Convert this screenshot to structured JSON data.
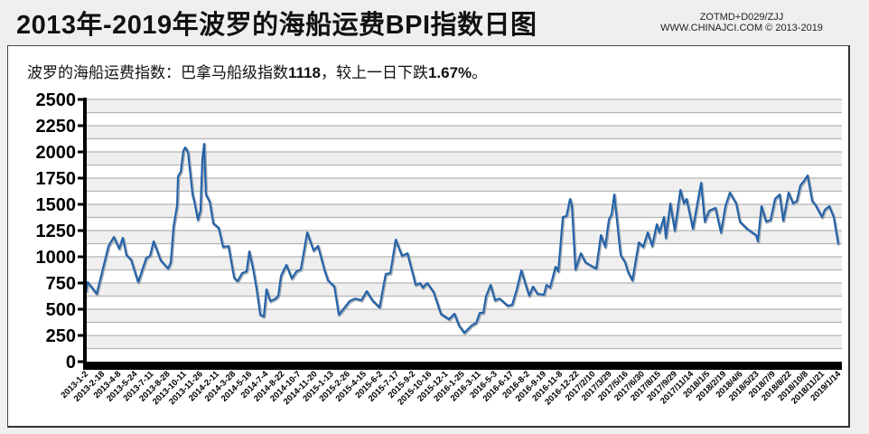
{
  "header": {
    "title": "2013年-2019年波罗的海船运费BPI指数日图",
    "credit_line1": "ZOTMD+D029/ZJJ",
    "credit_line2": "WWW.CHINAJCI.COM © 2013-2019"
  },
  "subtitle": {
    "prefix": "波罗的海船运费指数：巴拿马船级指数",
    "index_value": "1118",
    "middle": "，较上一日下跌",
    "change": "1.67%",
    "suffix": "。"
  },
  "colors": {
    "line": "#2060a8",
    "band": "#efefef",
    "grid": "#b4b4b4"
  },
  "chart_data": {
    "type": "line",
    "title": "波罗的海船运费BPI指数日图",
    "xlabel": "",
    "ylabel": "",
    "ylim": [
      0,
      2500
    ],
    "yticks": [
      0,
      250,
      500,
      750,
      1000,
      1250,
      1500,
      1750,
      2000,
      2250,
      2500
    ],
    "grid": true,
    "legend": "none",
    "categories": [
      "2013-1-2",
      "2013-2-18",
      "2013-4-8",
      "2013-5-24",
      "2013-7-11",
      "2013-8-28",
      "2013-10-11",
      "2013-11-26",
      "2014-2-11",
      "2014-3-28",
      "2014-5-16",
      "2014-7-4",
      "2014-8-22",
      "2014-10-7",
      "2014-11-20",
      "2015-1-13",
      "2015-2-26",
      "2015-4-15",
      "2015-6-2",
      "2015-7-17",
      "2015-9-2",
      "2015-10-16",
      "2015-12-1",
      "2016-1-25",
      "2016-3-11",
      "2016-5-3",
      "2016-6-17",
      "2016-8-2",
      "2016-9-19",
      "2016-11-8",
      "2016-12-22",
      "2017/2/10",
      "2017/3/29",
      "2017/5/16",
      "2017/6/30",
      "2017/8/15",
      "2017/9/29",
      "2017/11/14",
      "2018/1/5",
      "2018/2/19",
      "2018/4/6",
      "2018/5/23",
      "2018/7/9",
      "2018/8/22",
      "2018/10/8",
      "2018/11/21",
      "2019/1/14"
    ],
    "series": [
      {
        "name": "BPI",
        "x_note": "x is fractional category index",
        "points": [
          [
            0,
            664
          ],
          [
            0.11,
            759
          ],
          [
            0.66,
            647
          ],
          [
            1.1,
            922
          ],
          [
            1.38,
            1103
          ],
          [
            1.71,
            1190
          ],
          [
            2.04,
            1078
          ],
          [
            2.26,
            1181
          ],
          [
            2.48,
            1017
          ],
          [
            2.76,
            974
          ],
          [
            3.2,
            759
          ],
          [
            3.7,
            991
          ],
          [
            3.92,
            1009
          ],
          [
            4.14,
            1147
          ],
          [
            4.58,
            966
          ],
          [
            5.03,
            888
          ],
          [
            5.19,
            948
          ],
          [
            5.36,
            1293
          ],
          [
            5.58,
            1491
          ],
          [
            5.63,
            1767
          ],
          [
            5.8,
            1810
          ],
          [
            5.96,
            2009
          ],
          [
            6.07,
            2043
          ],
          [
            6.24,
            2000
          ],
          [
            6.52,
            1595
          ],
          [
            6.63,
            1526
          ],
          [
            6.85,
            1353
          ],
          [
            7.01,
            1440
          ],
          [
            7.12,
            1922
          ],
          [
            7.23,
            2078
          ],
          [
            7.34,
            1595
          ],
          [
            7.57,
            1526
          ],
          [
            7.79,
            1319
          ],
          [
            8.12,
            1276
          ],
          [
            8.39,
            1095
          ],
          [
            8.72,
            1103
          ],
          [
            9.06,
            802
          ],
          [
            9.28,
            767
          ],
          [
            9.55,
            845
          ],
          [
            9.83,
            862
          ],
          [
            9.99,
            1052
          ],
          [
            10.22,
            888
          ],
          [
            10.44,
            690
          ],
          [
            10.66,
            448
          ],
          [
            10.88,
            431
          ],
          [
            11.04,
            690
          ],
          [
            11.27,
            578
          ],
          [
            11.6,
            603
          ],
          [
            11.76,
            629
          ],
          [
            11.93,
            819
          ],
          [
            12.26,
            922
          ],
          [
            12.59,
            793
          ],
          [
            12.87,
            862
          ],
          [
            13.14,
            879
          ],
          [
            13.53,
            1233
          ],
          [
            13.92,
            1060
          ],
          [
            14.19,
            1103
          ],
          [
            14.58,
            879
          ],
          [
            14.8,
            776
          ],
          [
            15.19,
            716
          ],
          [
            15.46,
            448
          ],
          [
            15.74,
            500
          ],
          [
            16.12,
            578
          ],
          [
            16.46,
            603
          ],
          [
            16.84,
            586
          ],
          [
            17.17,
            672
          ],
          [
            17.51,
            586
          ],
          [
            17.95,
            517
          ],
          [
            18.33,
            836
          ],
          [
            18.61,
            845
          ],
          [
            18.94,
            1164
          ],
          [
            19.33,
            1009
          ],
          [
            19.66,
            1034
          ],
          [
            20.16,
            733
          ],
          [
            20.43,
            750
          ],
          [
            20.6,
            707
          ],
          [
            20.87,
            750
          ],
          [
            21.26,
            664
          ],
          [
            21.7,
            457
          ],
          [
            22.2,
            405
          ],
          [
            22.53,
            457
          ],
          [
            22.81,
            345
          ],
          [
            23.14,
            276
          ],
          [
            23.58,
            345
          ],
          [
            23.86,
            371
          ],
          [
            24.08,
            466
          ],
          [
            24.3,
            466
          ],
          [
            24.46,
            621
          ],
          [
            24.74,
            733
          ],
          [
            25.01,
            586
          ],
          [
            25.29,
            603
          ],
          [
            25.79,
            534
          ],
          [
            26.06,
            543
          ],
          [
            26.34,
            690
          ],
          [
            26.62,
            871
          ],
          [
            26.89,
            733
          ],
          [
            27.11,
            629
          ],
          [
            27.33,
            716
          ],
          [
            27.61,
            647
          ],
          [
            28.0,
            638
          ],
          [
            28.16,
            733
          ],
          [
            28.38,
            707
          ],
          [
            28.71,
            905
          ],
          [
            28.88,
            862
          ],
          [
            29.16,
            1379
          ],
          [
            29.38,
            1388
          ],
          [
            29.6,
            1552
          ],
          [
            29.71,
            1491
          ],
          [
            29.93,
            879
          ],
          [
            30.26,
            1034
          ],
          [
            30.54,
            948
          ],
          [
            30.81,
            922
          ],
          [
            31.2,
            888
          ],
          [
            31.48,
            1207
          ],
          [
            31.75,
            1095
          ],
          [
            31.97,
            1353
          ],
          [
            32.14,
            1405
          ],
          [
            32.3,
            1595
          ],
          [
            32.69,
            1017
          ],
          [
            32.97,
            948
          ],
          [
            33.13,
            862
          ],
          [
            33.41,
            776
          ],
          [
            33.8,
            1138
          ],
          [
            34.07,
            1095
          ],
          [
            34.35,
            1233
          ],
          [
            34.62,
            1103
          ],
          [
            34.9,
            1310
          ],
          [
            35.06,
            1233
          ],
          [
            35.34,
            1379
          ],
          [
            35.45,
            1181
          ],
          [
            35.73,
            1509
          ],
          [
            36.0,
            1250
          ],
          [
            36.34,
            1638
          ],
          [
            36.56,
            1509
          ],
          [
            36.72,
            1552
          ],
          [
            37.11,
            1267
          ],
          [
            37.38,
            1509
          ],
          [
            37.61,
            1707
          ],
          [
            37.83,
            1336
          ],
          [
            38.1,
            1440
          ],
          [
            38.49,
            1466
          ],
          [
            38.82,
            1233
          ],
          [
            39.1,
            1483
          ],
          [
            39.37,
            1612
          ],
          [
            39.76,
            1509
          ],
          [
            39.98,
            1336
          ],
          [
            40.42,
            1267
          ],
          [
            40.97,
            1207
          ],
          [
            41.08,
            1147
          ],
          [
            41.3,
            1483
          ],
          [
            41.58,
            1336
          ],
          [
            41.86,
            1353
          ],
          [
            42.13,
            1552
          ],
          [
            42.41,
            1595
          ],
          [
            42.63,
            1345
          ],
          [
            42.96,
            1612
          ],
          [
            43.24,
            1509
          ],
          [
            43.46,
            1534
          ],
          [
            43.68,
            1681
          ],
          [
            43.9,
            1724
          ],
          [
            44.12,
            1776
          ],
          [
            44.4,
            1534
          ],
          [
            44.62,
            1491
          ],
          [
            45.0,
            1379
          ],
          [
            45.17,
            1448
          ],
          [
            45.45,
            1483
          ],
          [
            45.72,
            1379
          ],
          [
            46.0,
            1118
          ]
        ]
      }
    ]
  }
}
